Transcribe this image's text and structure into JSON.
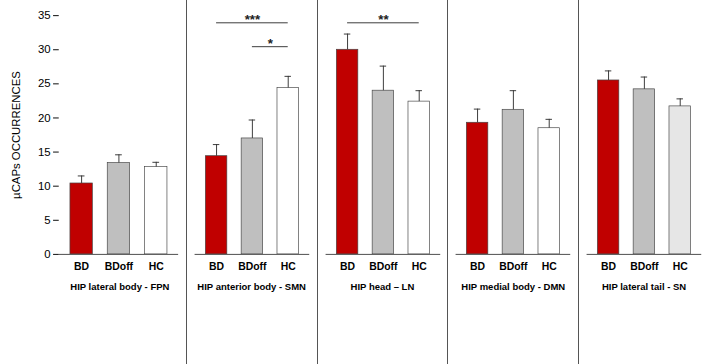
{
  "chart_data": [
    {
      "type": "bar",
      "title": "HIP lateral body - FPN",
      "ylabel": "µCAPs OCCURRENCES",
      "categories": [
        "BD",
        "BDoff",
        "HC"
      ],
      "values": [
        10.4,
        13.4,
        12.8
      ],
      "errors": [
        1.1,
        1.2,
        0.7
      ],
      "colors": [
        "#c00000",
        "#bfbfbf",
        "#ffffff"
      ],
      "ylim": [
        0,
        35
      ],
      "yticks": [
        0,
        5,
        10,
        15,
        20,
        25,
        30,
        35
      ],
      "grid": false,
      "annotations": []
    },
    {
      "type": "bar",
      "title": "HIP anterior body - SMN",
      "categories": [
        "BD",
        "BDoff",
        "HC"
      ],
      "values": [
        14.4,
        17.0,
        24.4
      ],
      "errors": [
        1.7,
        2.7,
        1.7
      ],
      "colors": [
        "#c00000",
        "#bfbfbf",
        "#ffffff"
      ],
      "ylim": [
        0,
        35
      ],
      "grid": false,
      "tick_labels": "x",
      "annotations": [
        {
          "from": "BD",
          "to": "HC",
          "label": "***"
        },
        {
          "from": "BDoff",
          "to": "HC",
          "label": "*"
        }
      ]
    },
    {
      "type": "bar",
      "title": "HIP head – LN",
      "categories": [
        "BD",
        "BDoff",
        "HC"
      ],
      "values": [
        30.0,
        24.0,
        22.4
      ],
      "errors": [
        2.3,
        3.6,
        1.6
      ],
      "colors": [
        "#c00000",
        "#bfbfbf",
        "#ffffff"
      ],
      "ylim": [
        0,
        35
      ],
      "grid": false,
      "tick_labels": "x",
      "annotations": [
        {
          "from": "BD",
          "to": "HC",
          "label": "**"
        }
      ]
    },
    {
      "type": "bar",
      "title": "HIP medial body - DMN",
      "categories": [
        "BD",
        "BDoff",
        "HC"
      ],
      "values": [
        19.3,
        21.2,
        18.5
      ],
      "errors": [
        2.0,
        2.8,
        1.3
      ],
      "colors": [
        "#c00000",
        "#bfbfbf",
        "#ffffff"
      ],
      "ylim": [
        0,
        35
      ],
      "grid": false,
      "tick_labels": "x",
      "annotations": []
    },
    {
      "type": "bar",
      "title": "HIP lateral tail - SN",
      "categories": [
        "BD",
        "BDoff",
        "HC"
      ],
      "values": [
        25.5,
        24.2,
        21.7
      ],
      "errors": [
        1.4,
        1.8,
        1.1
      ],
      "colors": [
        "#c00000",
        "#bfbfbf",
        "#e6e6e6"
      ],
      "ylim": [
        0,
        35
      ],
      "grid": false,
      "tick_labels": "x",
      "annotations": []
    }
  ]
}
